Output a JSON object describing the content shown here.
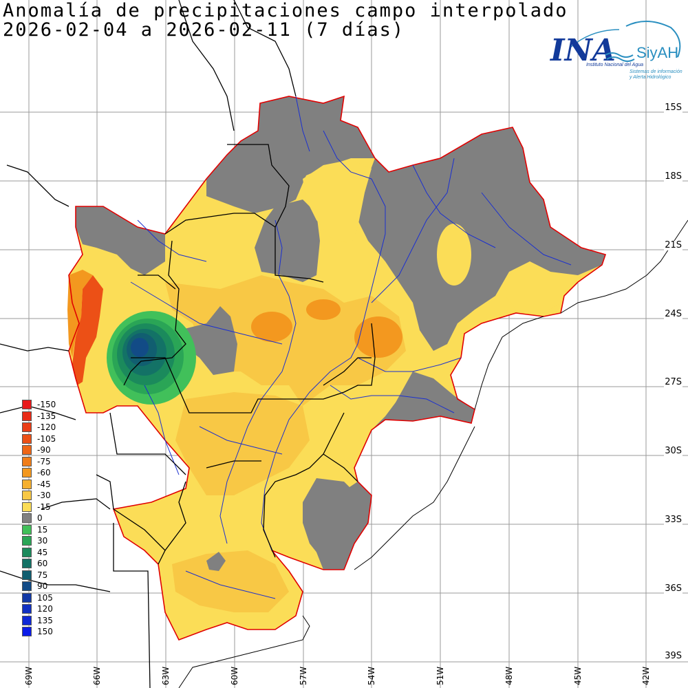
{
  "title": {
    "line1": "Anomalía de precipitaciones campo interpolado",
    "line2": "2026-02-04 a 2026-02-11 (7 días)"
  },
  "logo": {
    "name": "INA",
    "suffix": "SiyAH",
    "org": "Instituto Nacional del Agua",
    "system_line1": "Sistemas de información",
    "system_line2": "y Alerta Hidrológico"
  },
  "lat_labels": [
    "15S",
    "18S",
    "21S",
    "24S",
    "27S",
    "30S",
    "33S",
    "36S",
    "39S"
  ],
  "lon_labels": [
    "69W",
    "66W",
    "63W",
    "60W",
    "57W",
    "54W",
    "51W",
    "48W",
    "45W",
    "42W"
  ],
  "legend": {
    "items": [
      {
        "label": "-150",
        "color": "#e8191b"
      },
      {
        "label": "-135",
        "color": "#e92c18"
      },
      {
        "label": "-120",
        "color": "#ea3d17"
      },
      {
        "label": "-105",
        "color": "#ec5016"
      },
      {
        "label": "-90",
        "color": "#ee6616"
      },
      {
        "label": "-75",
        "color": "#f07d18"
      },
      {
        "label": "-60",
        "color": "#f3981f"
      },
      {
        "label": "-45",
        "color": "#f5b030"
      },
      {
        "label": "-30",
        "color": "#f8c845"
      },
      {
        "label": "-15",
        "color": "#fbdd57"
      },
      {
        "label": "0",
        "color": "#808080"
      },
      {
        "label": "15",
        "color": "#41c05a"
      },
      {
        "label": "30",
        "color": "#2aa556"
      },
      {
        "label": "45",
        "color": "#1b8a5c"
      },
      {
        "label": "60",
        "color": "#137266"
      },
      {
        "label": "75",
        "color": "#115e70"
      },
      {
        "label": "90",
        "color": "#124b86"
      },
      {
        "label": "105",
        "color": "#1239a6"
      },
      {
        "label": "120",
        "color": "#1030c2"
      },
      {
        "label": "135",
        "color": "#0f28d6"
      },
      {
        "label": "150",
        "color": "#0b1be8"
      }
    ]
  },
  "colors": {
    "gray": "#808080",
    "yellow": "#fbdd57",
    "orange_light": "#f8c845",
    "orange": "#f3981f",
    "boundary": "#e00000",
    "river": "#1a2fd0"
  }
}
